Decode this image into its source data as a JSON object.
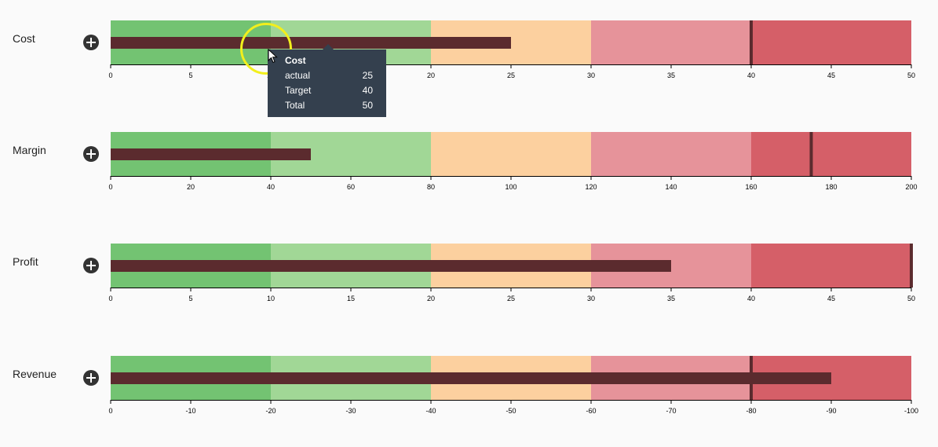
{
  "colors": {
    "ranges": [
      "#73c372",
      "#a1d796",
      "#fcd09f",
      "#e6939a",
      "#d55f68"
    ],
    "actual": "#5b2b2e",
    "target": "#5b2b2e",
    "axis": "#000000",
    "tooltip_bg": "#34404e",
    "highlight": "#f2ef1c"
  },
  "chart_data": [
    {
      "type": "bullet",
      "title": "Cost",
      "domain": [
        0,
        50
      ],
      "ticks": [
        0,
        5,
        10,
        15,
        20,
        25,
        30,
        35,
        40,
        45,
        50
      ],
      "ranges": [
        10,
        20,
        30,
        40,
        50
      ],
      "actual": 25,
      "target": 40
    },
    {
      "type": "bullet",
      "title": "Margin",
      "domain": [
        0,
        200
      ],
      "ticks": [
        0,
        20,
        40,
        60,
        80,
        100,
        120,
        140,
        160,
        180,
        200
      ],
      "ranges": [
        40,
        80,
        120,
        160,
        200
      ],
      "actual": 50,
      "target": 175
    },
    {
      "type": "bullet",
      "title": "Profit",
      "domain": [
        0,
        50
      ],
      "ticks": [
        0,
        5,
        10,
        15,
        20,
        25,
        30,
        35,
        40,
        45,
        50
      ],
      "ranges": [
        10,
        20,
        30,
        40,
        50
      ],
      "actual": 35,
      "target": 50
    },
    {
      "type": "bullet",
      "title": "Revenue",
      "domain": [
        0,
        -100
      ],
      "ticks": [
        0,
        -10,
        -20,
        -30,
        -40,
        -50,
        -60,
        -70,
        -80,
        -90,
        -100
      ],
      "ranges": [
        -20,
        -40,
        -60,
        -80,
        -100
      ],
      "actual": -90,
      "target": -80
    }
  ],
  "tooltip": {
    "title": "Cost",
    "rows": [
      {
        "label": "actual",
        "value": "25"
      },
      {
        "label": "Target",
        "value": "40"
      },
      {
        "label": "Total",
        "value": "50"
      }
    ]
  },
  "icons": {
    "expand": "plus-circle-icon",
    "cursor": "mouse-pointer-icon"
  }
}
